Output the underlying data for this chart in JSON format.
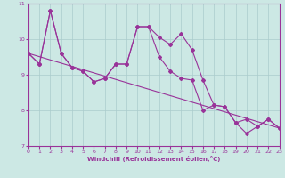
{
  "xlabel": "Windchill (Refroidissement éolien,°C)",
  "background_color": "#cce8e4",
  "grid_color": "#aacccc",
  "line_color": "#993399",
  "x_hours": [
    0,
    1,
    2,
    3,
    4,
    5,
    6,
    7,
    8,
    9,
    10,
    11,
    12,
    13,
    14,
    15,
    16,
    17,
    18,
    19,
    20,
    21,
    22,
    23
  ],
  "series1": [
    9.6,
    9.3,
    10.8,
    9.6,
    9.2,
    9.1,
    8.8,
    8.9,
    9.3,
    9.3,
    10.35,
    10.35,
    10.05,
    9.85,
    10.15,
    9.7,
    8.85,
    8.15,
    8.1,
    7.65,
    7.75,
    7.55,
    7.75,
    7.5
  ],
  "series2": [
    9.6,
    9.3,
    10.8,
    9.6,
    9.2,
    9.1,
    8.8,
    8.9,
    9.3,
    9.3,
    10.35,
    10.35,
    9.5,
    9.1,
    8.9,
    8.85,
    8.0,
    8.15,
    8.1,
    7.65,
    7.35,
    7.55,
    7.75,
    7.5
  ],
  "trend_x": [
    0,
    23
  ],
  "trend_y": [
    9.6,
    7.5
  ],
  "ylim": [
    7.0,
    11.0
  ],
  "xlim": [
    0,
    23
  ],
  "yticks": [
    7,
    8,
    9,
    10,
    11
  ],
  "xticks": [
    0,
    1,
    2,
    3,
    4,
    5,
    6,
    7,
    8,
    9,
    10,
    11,
    12,
    13,
    14,
    15,
    16,
    17,
    18,
    19,
    20,
    21,
    22,
    23
  ]
}
